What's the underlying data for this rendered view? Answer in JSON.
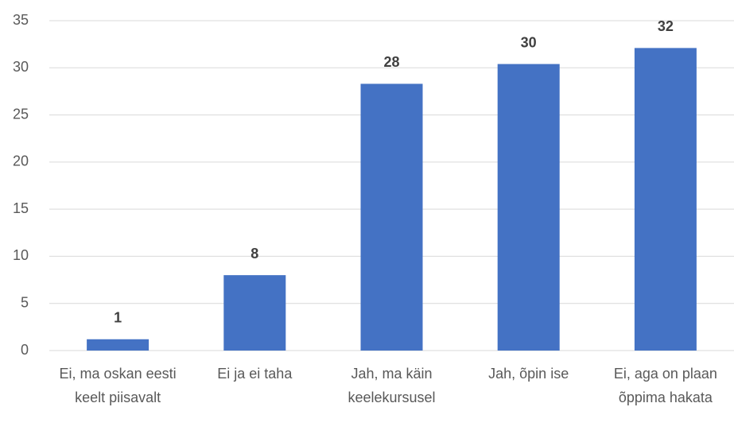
{
  "chart_data": {
    "type": "bar",
    "categories": [
      "Ei, ma oskan eesti keelt piisavalt",
      "Ei ja ei taha",
      "Jah, ma käin keelekursusel",
      "Jah, õpin ise",
      "Ei, aga on plaan õppima hakata"
    ],
    "values": [
      1.2,
      8,
      28.3,
      30.4,
      32.1
    ],
    "value_labels": [
      "1",
      "8",
      "28",
      "30",
      "32"
    ],
    "color": "#4472c4",
    "ylim": [
      0,
      35
    ],
    "yticks": [
      0,
      5,
      10,
      15,
      20,
      25,
      30,
      35
    ],
    "grid": true
  }
}
